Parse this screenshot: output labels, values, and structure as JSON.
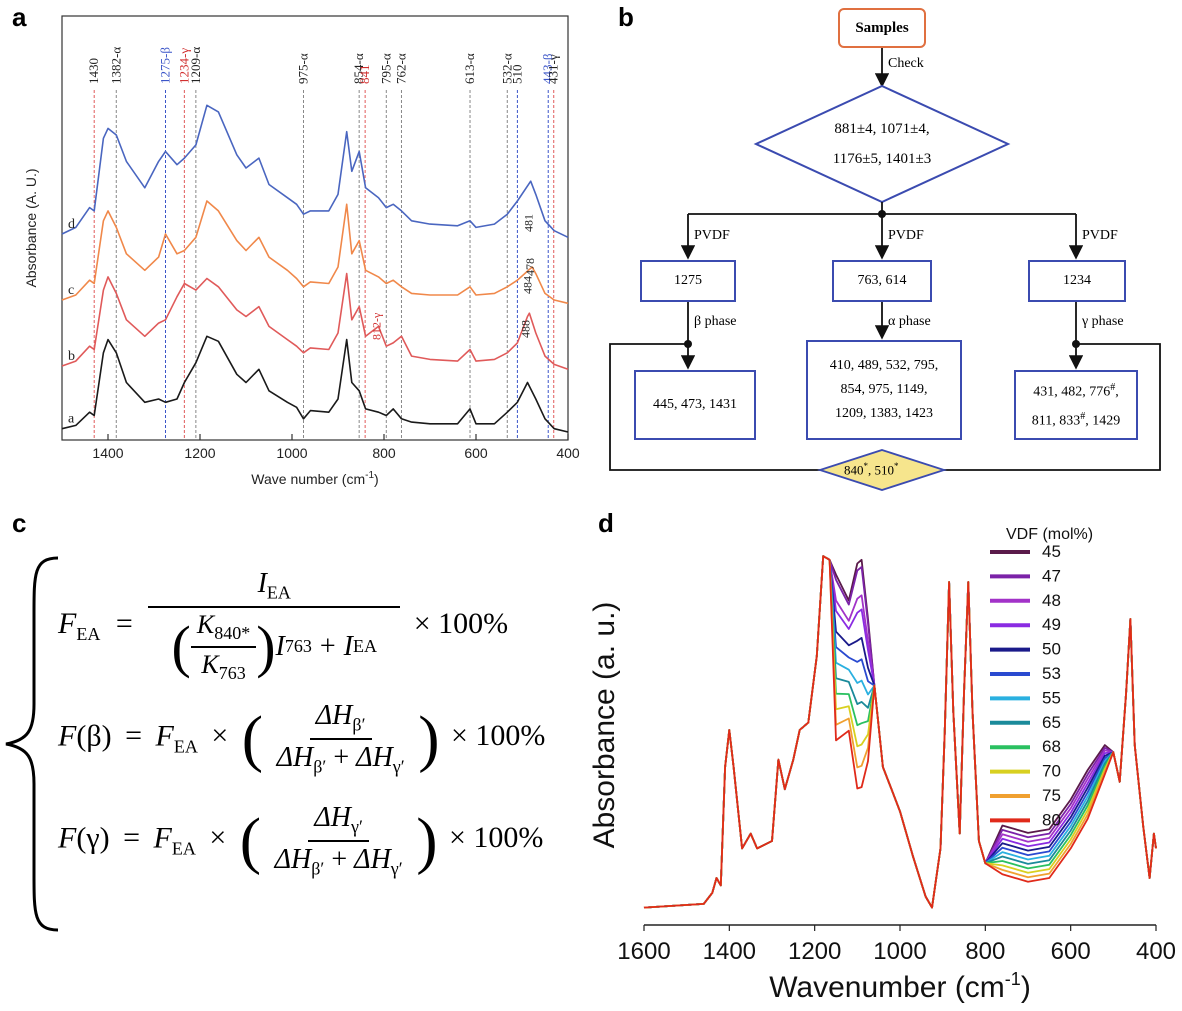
{
  "panels": {
    "a": "a",
    "b": "b",
    "c": "c",
    "d": "d"
  },
  "chart_data": [
    {
      "type": "line",
      "panel": "a",
      "xlabel_main": "Wave number (cm",
      "xlabel_sup": "-1",
      "xlabel_end": ")",
      "ylabel": "Absorbance (A. U.)",
      "xlim": [
        1500,
        400
      ],
      "xticks": [
        "1400",
        "1200",
        "1000",
        "800",
        "600",
        "400"
      ],
      "xtick_values": [
        1400,
        1200,
        1000,
        800,
        600,
        400
      ],
      "series": [
        {
          "name": "a",
          "color": "#1a1a1a",
          "offset": 0,
          "x": [
            1500,
            1470,
            1440,
            1430,
            1410,
            1400,
            1382,
            1360,
            1320,
            1290,
            1275,
            1250,
            1234,
            1209,
            1185,
            1160,
            1120,
            1100,
            1072,
            1050,
            1010,
            990,
            975,
            960,
            920,
            900,
            881,
            870,
            854,
            840,
            812,
            795,
            780,
            762,
            740,
            700,
            640,
            613,
            600,
            560,
            532,
            510,
            488,
            470,
            450,
            430,
            400
          ],
          "y": [
            0.02,
            0.04,
            0.12,
            0.1,
            0.48,
            0.56,
            0.48,
            0.3,
            0.18,
            0.2,
            0.18,
            0.2,
            0.3,
            0.42,
            0.58,
            0.55,
            0.35,
            0.3,
            0.38,
            0.25,
            0.18,
            0.15,
            0.08,
            0.13,
            0.12,
            0.2,
            0.56,
            0.3,
            0.25,
            0.14,
            0.12,
            0.1,
            0.14,
            0.08,
            0.06,
            0.05,
            0.05,
            0.14,
            0.05,
            0.05,
            0.12,
            0.18,
            0.3,
            0.2,
            0.08,
            0.02,
            0.0
          ]
        },
        {
          "name": "b",
          "color": "#e05a5a",
          "offset": 0.38,
          "x": [
            1500,
            1470,
            1440,
            1430,
            1410,
            1400,
            1382,
            1360,
            1320,
            1290,
            1275,
            1250,
            1234,
            1209,
            1185,
            1160,
            1120,
            1100,
            1072,
            1050,
            1010,
            990,
            975,
            960,
            920,
            900,
            881,
            870,
            854,
            840,
            812,
            795,
            780,
            762,
            740,
            700,
            640,
            613,
            600,
            560,
            532,
            510,
            488,
            484,
            470,
            450,
            430,
            400
          ],
          "y": [
            0.02,
            0.05,
            0.14,
            0.12,
            0.48,
            0.56,
            0.46,
            0.3,
            0.2,
            0.28,
            0.3,
            0.44,
            0.52,
            0.48,
            0.55,
            0.5,
            0.36,
            0.32,
            0.38,
            0.26,
            0.18,
            0.14,
            0.1,
            0.13,
            0.12,
            0.22,
            0.58,
            0.3,
            0.38,
            0.2,
            0.26,
            0.14,
            0.16,
            0.2,
            0.08,
            0.06,
            0.05,
            0.12,
            0.05,
            0.06,
            0.1,
            0.16,
            0.32,
            0.34,
            0.22,
            0.08,
            0.03,
            0.0
          ]
        },
        {
          "name": "c",
          "color": "#f0884a",
          "offset": 0.78,
          "x": [
            1500,
            1470,
            1440,
            1430,
            1410,
            1400,
            1382,
            1360,
            1320,
            1290,
            1275,
            1250,
            1234,
            1209,
            1185,
            1160,
            1120,
            1100,
            1072,
            1050,
            1010,
            990,
            975,
            960,
            920,
            900,
            881,
            870,
            854,
            840,
            812,
            795,
            780,
            762,
            740,
            700,
            640,
            613,
            600,
            560,
            532,
            510,
            478,
            470,
            450,
            430,
            400
          ],
          "y": [
            0.02,
            0.05,
            0.14,
            0.12,
            0.5,
            0.56,
            0.46,
            0.3,
            0.2,
            0.28,
            0.42,
            0.3,
            0.32,
            0.4,
            0.62,
            0.56,
            0.38,
            0.32,
            0.4,
            0.28,
            0.2,
            0.15,
            0.1,
            0.13,
            0.12,
            0.22,
            0.6,
            0.3,
            0.38,
            0.2,
            0.16,
            0.12,
            0.14,
            0.1,
            0.06,
            0.05,
            0.05,
            0.1,
            0.05,
            0.06,
            0.1,
            0.14,
            0.22,
            0.18,
            0.06,
            0.02,
            0.0
          ]
        },
        {
          "name": "d",
          "color": "#4a66c0",
          "offset": 1.18,
          "x": [
            1500,
            1470,
            1440,
            1430,
            1410,
            1400,
            1382,
            1360,
            1320,
            1290,
            1275,
            1250,
            1234,
            1209,
            1185,
            1160,
            1120,
            1100,
            1072,
            1050,
            1010,
            990,
            975,
            960,
            920,
            900,
            881,
            870,
            854,
            840,
            812,
            795,
            780,
            762,
            740,
            700,
            640,
            613,
            600,
            560,
            532,
            510,
            481,
            470,
            450,
            430,
            400
          ],
          "y": [
            0.02,
            0.06,
            0.18,
            0.16,
            0.6,
            0.66,
            0.62,
            0.46,
            0.3,
            0.46,
            0.52,
            0.44,
            0.48,
            0.56,
            0.8,
            0.76,
            0.5,
            0.42,
            0.48,
            0.32,
            0.24,
            0.2,
            0.14,
            0.16,
            0.16,
            0.26,
            0.64,
            0.4,
            0.52,
            0.3,
            0.24,
            0.18,
            0.2,
            0.16,
            0.1,
            0.08,
            0.07,
            0.1,
            0.06,
            0.08,
            0.14,
            0.22,
            0.34,
            0.26,
            0.1,
            0.04,
            0.0
          ]
        }
      ],
      "annotations": [
        {
          "x": 1430,
          "label": "1430",
          "color": "#222",
          "line": "#e05a5a"
        },
        {
          "x": 1382,
          "label": "1382-α",
          "color": "#222",
          "line": "#888"
        },
        {
          "x": 1275,
          "label": "1275-β",
          "color": "#3b55c8",
          "line": "#3b55c8"
        },
        {
          "x": 1234,
          "label": "1234-γ",
          "color": "#d13030",
          "line": "#e05a5a"
        },
        {
          "x": 1209,
          "label": "1209-α",
          "color": "#222",
          "line": "#888"
        },
        {
          "x": 975,
          "label": "975-α",
          "color": "#222",
          "line": "#888"
        },
        {
          "x": 854,
          "label": "854-α",
          "color": "#222",
          "line": "#888"
        },
        {
          "x": 841,
          "label": "841",
          "color": "#d13030",
          "line": "#e05a5a"
        },
        {
          "x": 795,
          "label": "795-α",
          "color": "#222",
          "line": "#888"
        },
        {
          "x": 762,
          "label": "762-α",
          "color": "#222",
          "line": "#888"
        },
        {
          "x": 613,
          "label": "613-α",
          "color": "#222",
          "line": "#888"
        },
        {
          "x": 532,
          "label": "532-α",
          "color": "#222",
          "line": "#888"
        },
        {
          "x": 510,
          "label": "510",
          "color": "#222",
          "line": "#3b55c8"
        },
        {
          "x": 443,
          "label": "443-β",
          "color": "#3b55c8",
          "line": "#3b55c8"
        },
        {
          "x": 431,
          "label": "431-γ",
          "color": "#222",
          "line": "#e05a5a"
        }
      ],
      "inline_labels": [
        {
          "x": 481,
          "label": "481"
        },
        {
          "x": 478,
          "label": "478"
        },
        {
          "x": 484,
          "label": "484"
        },
        {
          "x": 488,
          "label": "488"
        },
        {
          "x": 812,
          "label": "812-γ"
        }
      ]
    },
    {
      "type": "line",
      "panel": "d",
      "xlabel_main": "Wavenumber (cm",
      "xlabel_sup": "-1",
      "xlabel_end": ")",
      "ylabel": "Absorbance (a. u.)",
      "xlim": [
        1600,
        400
      ],
      "xticks": [
        "1600",
        "1400",
        "1200",
        "1000",
        "800",
        "600",
        "400"
      ],
      "xtick_values": [
        1600,
        1400,
        1200,
        1000,
        800,
        600,
        400
      ],
      "legend_title": "VDF (mol%)",
      "series": [
        {
          "name": "45",
          "color": "#5a1a4a",
          "mid": 1.0
        },
        {
          "name": "47",
          "color": "#7b22a8",
          "mid": 0.98
        },
        {
          "name": "48",
          "color": "#a232c8",
          "mid": 0.9
        },
        {
          "name": "49",
          "color": "#8a2be2",
          "mid": 0.86
        },
        {
          "name": "50",
          "color": "#1a1a8a",
          "mid": 0.78
        },
        {
          "name": "53",
          "color": "#2a4ad0",
          "mid": 0.72
        },
        {
          "name": "55",
          "color": "#2ab0e0",
          "mid": 0.66
        },
        {
          "name": "65",
          "color": "#1a8a9a",
          "mid": 0.6
        },
        {
          "name": "68",
          "color": "#2ac060",
          "mid": 0.54
        },
        {
          "name": "70",
          "color": "#d8d020",
          "mid": 0.48
        },
        {
          "name": "75",
          "color": "#f0a030",
          "mid": 0.42
        },
        {
          "name": "80",
          "color": "#e02a1a",
          "mid": 0.36
        }
      ]
    }
  ],
  "flowchart": {
    "samples": "Samples",
    "check": "Check",
    "diamond_line1": "881±4, 1071±4,",
    "diamond_line2": "1176±5, 1401±3",
    "pvdf": "PVDF",
    "box_1275": "1275",
    "box_763": "763, 614",
    "box_1234": "1234",
    "beta_phase": "β phase",
    "alpha_phase": "α phase",
    "gamma_phase": "γ phase",
    "beta_peaks": "445, 473, 1431",
    "alpha_peaks_1": "410, 489, 532, 795,",
    "alpha_peaks_2": "854, 975, 1149,",
    "alpha_peaks_3": "1209, 1383, 1423",
    "gamma_peaks_1": "431, 482, 776",
    "gamma_peaks_sup1": "#",
    "gamma_peaks_2": "811, 833",
    "gamma_peaks_sup2": "#",
    "gamma_peaks_3": ", 1429",
    "bottom_diamond_1": "840",
    "bottom_diamond_sup1": "*",
    "bottom_diamond_2": ", 510",
    "bottom_diamond_sup2": "*"
  },
  "equations": {
    "F": "F",
    "EA": "EA",
    "I": "I",
    "K": "K",
    "k840": "840*",
    "k763": "763",
    "i763": "763",
    "times100": "× 100%",
    "beta": "β",
    "gamma": "γ",
    "dH": "ΔH",
    "beta_p": "β′",
    "gamma_p": "γ′",
    "plus": "+",
    "eq": "=",
    "times": "×"
  }
}
